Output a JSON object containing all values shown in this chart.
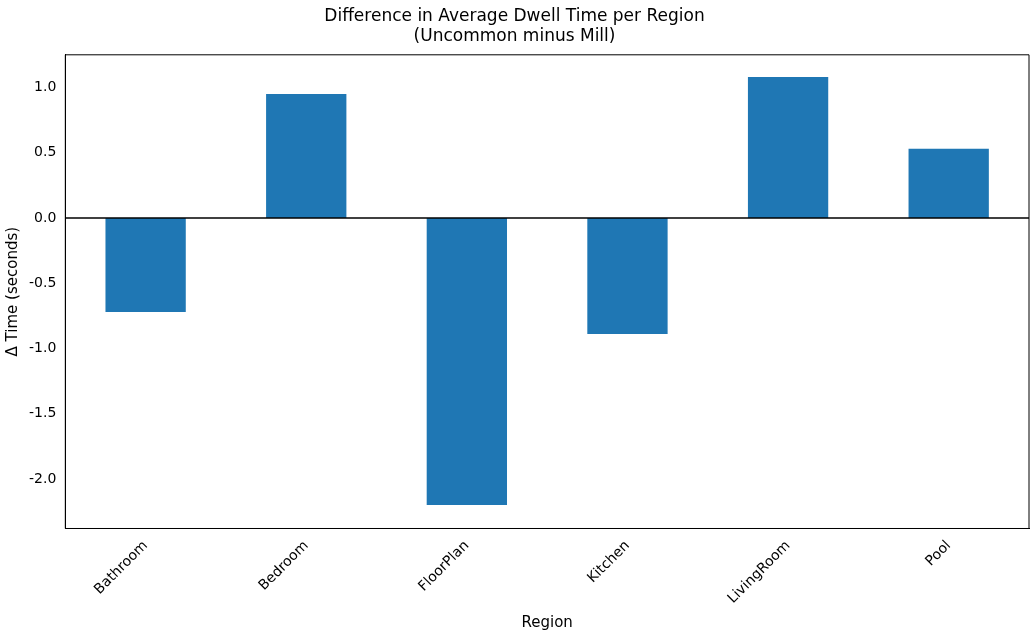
{
  "chart_data": {
    "type": "bar",
    "title": "Difference in Average Dwell Time per Region\n(Uncommon minus Mill)",
    "xlabel": "Region",
    "ylabel": "Δ Time (seconds)",
    "categories": [
      "Bathroom",
      "Bedroom",
      "FloorPlan",
      "Kitchen",
      "LivingRoom",
      "Pool"
    ],
    "values": [
      -0.72,
      0.95,
      -2.2,
      -0.89,
      1.08,
      0.53
    ],
    "color": "#1f77b4",
    "ylim": [
      -2.38,
      1.25
    ],
    "yticks": [
      {
        "value": -2,
        "label": "-2.0"
      },
      -1.5,
      {
        "value": -1,
        "label": "-1.0"
      },
      -0.5,
      {
        "value": 0,
        "label": "0.0"
      },
      0.5,
      {
        "value": 1,
        "label": "1.0"
      }
    ],
    "ref_lines": [
      {
        "axis": "y",
        "value": 0,
        "color": "#000000"
      }
    ],
    "grid": false,
    "legend": false
  }
}
